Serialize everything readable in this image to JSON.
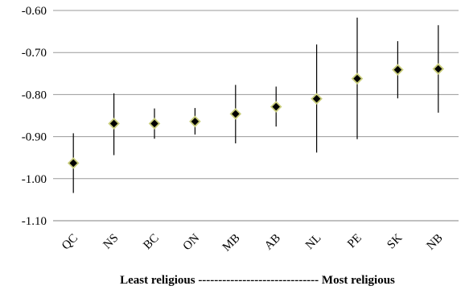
{
  "chart_data": {
    "type": "scatter",
    "categories": [
      "QC",
      "NS",
      "BC",
      "ON",
      "MB",
      "AB",
      "NL",
      "PE",
      "SK",
      "NB"
    ],
    "series": [
      {
        "values": [
          -0.963,
          -0.869,
          -0.869,
          -0.864,
          -0.846,
          -0.829,
          -0.81,
          -0.762,
          -0.741,
          -0.739
        ],
        "lower": [
          -1.034,
          -0.944,
          -0.905,
          -0.895,
          -0.916,
          -0.876,
          -0.938,
          -0.906,
          -0.809,
          -0.843
        ],
        "upper": [
          -0.892,
          -0.797,
          -0.833,
          -0.832,
          -0.777,
          -0.781,
          -0.681,
          -0.617,
          -0.673,
          -0.635
        ]
      }
    ],
    "ylim": [
      -1.1,
      -0.6
    ],
    "yticks": [
      "-0.60",
      "-0.70",
      "-0.80",
      "-0.90",
      "-1.00",
      "-1.10"
    ],
    "xlabel": "Least religious ------------------------------ Most religious",
    "ylabel": "",
    "grid": true,
    "marker_fill": "#000000",
    "marker_edge": "#c8cc7a",
    "grid_color": "#9a9a9a"
  }
}
